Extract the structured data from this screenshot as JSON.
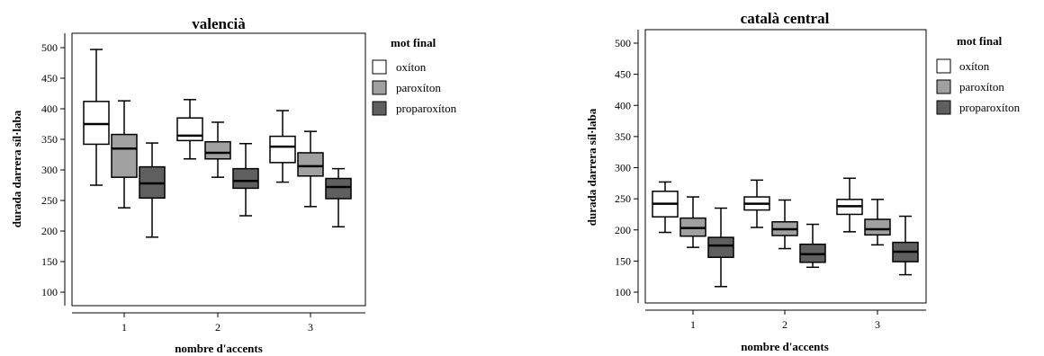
{
  "chart_data": [
    {
      "type": "boxplot",
      "title": "valencià",
      "xlabel": "nombre d'accents",
      "ylabel": "durada darrera síl·laba",
      "categories": [
        "1",
        "2",
        "3"
      ],
      "ylim": [
        80,
        520
      ],
      "yticks": [
        100,
        150,
        200,
        250,
        300,
        350,
        400,
        450,
        500
      ],
      "grid": false,
      "legend": {
        "title": "mot final",
        "placement": "right",
        "entries": [
          "oxíton",
          "paroxíton",
          "proparoxíton"
        ]
      },
      "series": [
        {
          "name": "oxíton",
          "color": "#ffffff",
          "boxes": [
            {
              "whisker_low": 275,
              "q1": 342,
              "median": 375,
              "q3": 412,
              "whisker_high": 497
            },
            {
              "whisker_low": 318,
              "q1": 348,
              "median": 356,
              "q3": 385,
              "whisker_high": 415
            },
            {
              "whisker_low": 280,
              "q1": 312,
              "median": 338,
              "q3": 355,
              "whisker_high": 397
            }
          ]
        },
        {
          "name": "paroxíton",
          "color": "#a0a0a0",
          "boxes": [
            {
              "whisker_low": 238,
              "q1": 288,
              "median": 335,
              "q3": 358,
              "whisker_high": 413
            },
            {
              "whisker_low": 288,
              "q1": 318,
              "median": 328,
              "q3": 346,
              "whisker_high": 378
            },
            {
              "whisker_low": 240,
              "q1": 290,
              "median": 306,
              "q3": 328,
              "whisker_high": 363
            }
          ]
        },
        {
          "name": "proparoxíton",
          "color": "#5f5f5f",
          "boxes": [
            {
              "whisker_low": 190,
              "q1": 254,
              "median": 278,
              "q3": 305,
              "whisker_high": 344
            },
            {
              "whisker_low": 225,
              "q1": 270,
              "median": 282,
              "q3": 302,
              "whisker_high": 343
            },
            {
              "whisker_low": 207,
              "q1": 253,
              "median": 272,
              "q3": 286,
              "whisker_high": 302
            }
          ]
        }
      ]
    },
    {
      "type": "boxplot",
      "title": "català central",
      "xlabel": "nombre d'accents",
      "ylabel": "durada darrera síl·laba",
      "categories": [
        "1",
        "2",
        "3"
      ],
      "ylim": [
        80,
        520
      ],
      "yticks": [
        100,
        150,
        200,
        250,
        300,
        350,
        400,
        450,
        500
      ],
      "grid": false,
      "legend": {
        "title": "mot final",
        "placement": "right",
        "entries": [
          "oxíton",
          "paroxíton",
          "proparoxíton"
        ]
      },
      "series": [
        {
          "name": "oxíton",
          "color": "#ffffff",
          "boxes": [
            {
              "whisker_low": 196,
              "q1": 221,
              "median": 242,
              "q3": 262,
              "whisker_high": 277
            },
            {
              "whisker_low": 204,
              "q1": 232,
              "median": 242,
              "q3": 253,
              "whisker_high": 280
            },
            {
              "whisker_low": 197,
              "q1": 225,
              "median": 238,
              "q3": 249,
              "whisker_high": 283
            }
          ]
        },
        {
          "name": "paroxíton",
          "color": "#a0a0a0",
          "boxes": [
            {
              "whisker_low": 172,
              "q1": 190,
              "median": 203,
              "q3": 219,
              "whisker_high": 253
            },
            {
              "whisker_low": 170,
              "q1": 191,
              "median": 201,
              "q3": 213,
              "whisker_high": 248
            },
            {
              "whisker_low": 176,
              "q1": 192,
              "median": 201,
              "q3": 217,
              "whisker_high": 249
            }
          ]
        },
        {
          "name": "proparoxíton",
          "color": "#5f5f5f",
          "boxes": [
            {
              "whisker_low": 109,
              "q1": 156,
              "median": 175,
              "q3": 188,
              "whisker_high": 235
            },
            {
              "whisker_low": 140,
              "q1": 148,
              "median": 161,
              "q3": 177,
              "whisker_high": 209
            },
            {
              "whisker_low": 128,
              "q1": 149,
              "median": 165,
              "q3": 180,
              "whisker_high": 222
            }
          ]
        }
      ]
    }
  ]
}
